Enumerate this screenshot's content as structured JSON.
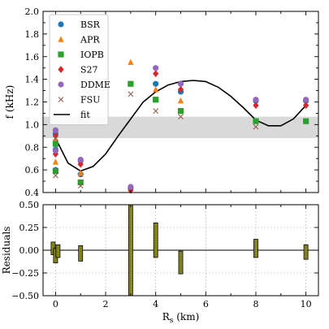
{
  "chart_data": [
    {
      "type": "scatter",
      "xlim": [
        -0.5,
        10.5
      ],
      "ylim": [
        0.4,
        2.0
      ],
      "ylabel": "f (kHz)",
      "yticks": [
        "0.4",
        "0.6",
        "0.8",
        "1.0",
        "1.2",
        "1.4",
        "1.6",
        "1.8",
        "2.0"
      ],
      "band": [
        0.88,
        1.07
      ],
      "band_color": "#d9d9d9",
      "legend_position": "top-left",
      "series": [
        {
          "name": "BSR",
          "marker": "circle",
          "color": "#1f77b4",
          "x": [
            0,
            0,
            0,
            1,
            1,
            3,
            4,
            5,
            8,
            10
          ],
          "y": [
            0.92,
            0.78,
            0.6,
            0.68,
            0.56,
            0.44,
            1.36,
            1.29,
            1.21,
            1.21
          ]
        },
        {
          "name": "APR",
          "marker": "triangle",
          "color": "#ff7f0e",
          "x": [
            0,
            0,
            1,
            3,
            4,
            5
          ],
          "y": [
            0.86,
            0.67,
            0.57,
            1.55,
            1.31,
            1.21
          ]
        },
        {
          "name": "IOPB",
          "marker": "square",
          "color": "#2ca02c",
          "x": [
            0,
            0,
            1,
            3,
            4,
            5,
            8,
            10
          ],
          "y": [
            0.83,
            0.59,
            0.49,
            1.36,
            1.22,
            1.12,
            1.03,
            1.03
          ]
        },
        {
          "name": "S27",
          "marker": "diamond",
          "color": "#d62728",
          "x": [
            0,
            0,
            1,
            3,
            4,
            5,
            8,
            10
          ],
          "y": [
            0.9,
            0.74,
            0.65,
            0.42,
            1.45,
            1.31,
            1.17,
            1.17
          ]
        },
        {
          "name": "DDME",
          "marker": "circle",
          "color": "#9467bd",
          "x": [
            0,
            0,
            1,
            3,
            4,
            5,
            8,
            10
          ],
          "y": [
            0.95,
            0.77,
            0.69,
            0.45,
            1.5,
            1.36,
            1.22,
            1.22
          ]
        },
        {
          "name": "FSU",
          "marker": "x",
          "color": "#8c564b",
          "x": [
            0,
            0,
            1,
            3,
            4,
            5,
            8
          ],
          "y": [
            0.88,
            0.55,
            0.46,
            1.27,
            1.12,
            1.07,
            0.98
          ]
        }
      ],
      "fit": {
        "name": "fit",
        "color": "#000000",
        "x": [
          0,
          0.5,
          1,
          1.5,
          2,
          2.5,
          3,
          3.5,
          4,
          4.5,
          5,
          5.5,
          6,
          6.5,
          7,
          7.5,
          8,
          8.5,
          9,
          9.5,
          10
        ],
        "y": [
          0.88,
          0.66,
          0.59,
          0.63,
          0.74,
          0.9,
          1.05,
          1.2,
          1.29,
          1.35,
          1.38,
          1.39,
          1.38,
          1.33,
          1.25,
          1.15,
          1.04,
          0.99,
          0.99,
          1.05,
          1.17
        ]
      }
    },
    {
      "type": "bar",
      "xlim": [
        -0.5,
        10.5
      ],
      "ylim": [
        -0.5,
        0.5
      ],
      "xlabel": "R_s (km)",
      "ylabel": "Residuals",
      "xticks": [
        "0",
        "2",
        "4",
        "6",
        "8",
        "10"
      ],
      "yticks": [
        "−0.50",
        "−0.25",
        "0.00",
        "0.25",
        "0.50"
      ],
      "bar_color": "#8c8c1e",
      "bars": [
        {
          "x": 0,
          "low": -0.05,
          "high": 0.09
        },
        {
          "x": 0,
          "low": -0.14,
          "high": 0.02
        },
        {
          "x": 0,
          "low": -0.08,
          "high": 0.06
        },
        {
          "x": 1,
          "low": -0.12,
          "high": 0.05
        },
        {
          "x": 3,
          "low": -0.5,
          "high": 0.5
        },
        {
          "x": 4,
          "low": -0.08,
          "high": 0.3
        },
        {
          "x": 5,
          "low": -0.26,
          "high": -0.01
        },
        {
          "x": 8,
          "low": -0.08,
          "high": 0.12
        },
        {
          "x": 10,
          "low": -0.1,
          "high": 0.06
        }
      ]
    }
  ]
}
